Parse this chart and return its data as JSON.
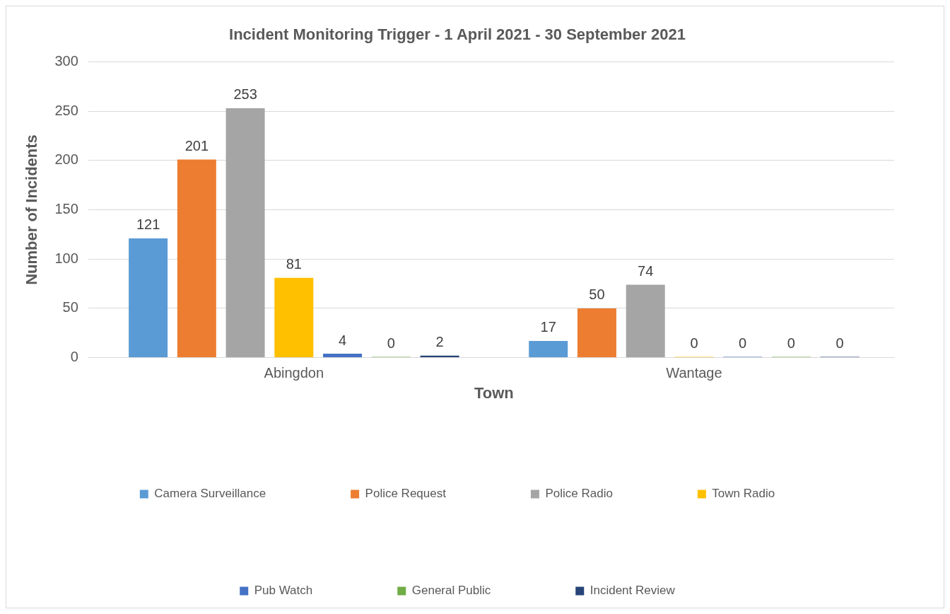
{
  "chart_data": {
    "type": "bar",
    "title": "Incident Monitoring Trigger - 1 April 2021 - 30 September 2021",
    "xlabel": "Town",
    "ylabel": "Number of Incidents",
    "categories": [
      "Abingdon",
      "Wantage"
    ],
    "series": [
      {
        "name": "Camera Surveillance",
        "color": "#5b9bd5",
        "values": [
          121,
          17
        ]
      },
      {
        "name": "Police Request",
        "color": "#ed7d31",
        "values": [
          201,
          50
        ]
      },
      {
        "name": "Police Radio",
        "color": "#a5a5a5",
        "values": [
          253,
          74
        ]
      },
      {
        "name": "Town Radio",
        "color": "#ffc000",
        "values": [
          81,
          0
        ]
      },
      {
        "name": "Pub Watch",
        "color": "#4472c4",
        "values": [
          4,
          0
        ]
      },
      {
        "name": "General Public",
        "color": "#70ad47",
        "values": [
          0,
          0
        ]
      },
      {
        "name": "Incident Review",
        "color": "#264478",
        "values": [
          2,
          0
        ]
      }
    ],
    "ylim": [
      0,
      300
    ],
    "yticks": [
      0,
      50,
      100,
      150,
      200,
      250,
      300
    ],
    "grid": "y",
    "legend": "bottom",
    "data_labels": true
  }
}
